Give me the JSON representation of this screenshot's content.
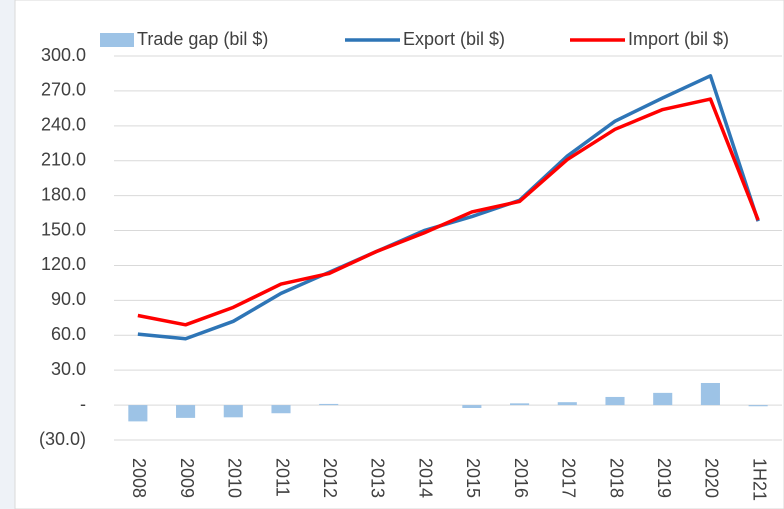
{
  "chart_data": {
    "type": "bar-line",
    "categories": [
      "2008",
      "2009",
      "2010",
      "2011",
      "2012",
      "2013",
      "2014",
      "2015",
      "2016",
      "2017",
      "2018",
      "2019",
      "2020",
      "1H21"
    ],
    "series": [
      {
        "name": "Trade gap (bil $)",
        "type": "bar",
        "color": "#9dc3e6",
        "values": [
          -14,
          -11,
          -10.5,
          -7,
          1,
          0,
          0,
          -2.5,
          1.5,
          2.5,
          7,
          10.5,
          19,
          -1
        ]
      },
      {
        "name": "Export (bil $)",
        "type": "line",
        "color": "#2e75b6",
        "values": [
          61,
          57,
          72,
          96,
          114,
          132,
          150,
          162,
          176,
          214,
          244,
          264,
          283,
          158
        ]
      },
      {
        "name": "Import (bil $)",
        "type": "line",
        "color": "#ff0000",
        "values": [
          77,
          69,
          84,
          104,
          113,
          132,
          148,
          166,
          175,
          211,
          237,
          254,
          263,
          159
        ]
      }
    ],
    "ylim": [
      -30,
      300
    ],
    "yticks": [
      {
        "value": -30,
        "label": "(30.0)"
      },
      {
        "value": 0,
        "label": "-"
      },
      {
        "value": 30,
        "label": "30.0"
      },
      {
        "value": 60,
        "label": "60.0"
      },
      {
        "value": 90,
        "label": "90.0"
      },
      {
        "value": 120,
        "label": "120.0"
      },
      {
        "value": 150,
        "label": "150.0"
      },
      {
        "value": 180,
        "label": "180.0"
      },
      {
        "value": 210,
        "label": "210.0"
      },
      {
        "value": 240,
        "label": "240.0"
      },
      {
        "value": 270,
        "label": "270.0"
      },
      {
        "value": 300,
        "label": "300.0"
      }
    ],
    "grid": true,
    "legend": "top"
  }
}
